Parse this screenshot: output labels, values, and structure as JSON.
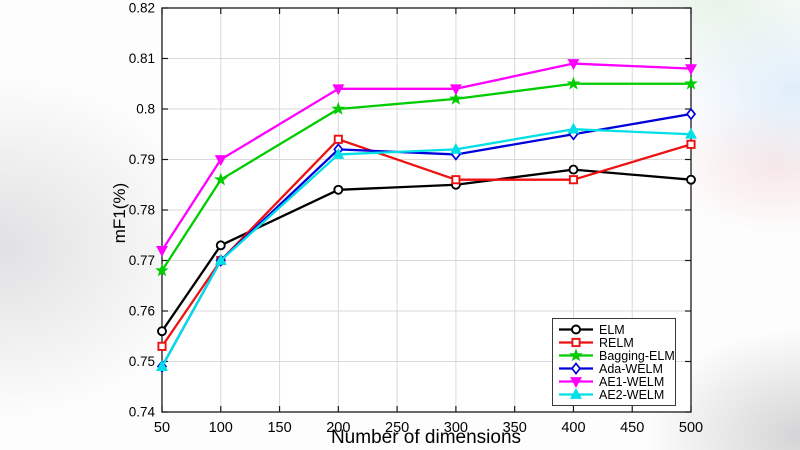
{
  "chart_data": {
    "type": "line",
    "title": "",
    "xlabel": "Number of dimensions",
    "ylabel": "mF1(%)",
    "xlim": [
      50,
      500
    ],
    "ylim": [
      0.74,
      0.82
    ],
    "grid": true,
    "legend_position": "lower-right",
    "x": [
      50,
      100,
      200,
      300,
      400,
      500
    ],
    "xticks": [
      50,
      100,
      150,
      200,
      250,
      300,
      350,
      400,
      450,
      500
    ],
    "xtick_labels": [
      "50",
      "100",
      "150",
      "200",
      "250",
      "300",
      "350",
      "400",
      "450",
      "500"
    ],
    "yticks": [
      0.74,
      0.75,
      0.76,
      0.77,
      0.78,
      0.79,
      0.8,
      0.81,
      0.82
    ],
    "ytick_labels": [
      "0.74",
      "0.75",
      "0.76",
      "0.77",
      "0.78",
      "0.79",
      "0.8",
      "0.81",
      "0.82"
    ],
    "series": [
      {
        "name": "ELM",
        "color": "#000000",
        "marker": "circle",
        "open_marker": true,
        "values": [
          0.756,
          0.773,
          0.784,
          0.785,
          0.788,
          0.786
        ]
      },
      {
        "name": "RELM",
        "color": "#ee1111",
        "marker": "square",
        "open_marker": true,
        "values": [
          0.753,
          0.77,
          0.794,
          0.786,
          0.786,
          0.793
        ]
      },
      {
        "name": "Bagging-ELM",
        "color": "#00cc00",
        "marker": "star",
        "open_marker": false,
        "values": [
          0.768,
          0.786,
          0.8,
          0.802,
          0.805,
          0.805
        ]
      },
      {
        "name": "Ada-WELM",
        "color": "#0000dd",
        "marker": "diamond",
        "open_marker": true,
        "values": [
          0.749,
          0.77,
          0.792,
          0.791,
          0.795,
          0.799
        ]
      },
      {
        "name": "AE1-WELM",
        "color": "#ff00ff",
        "marker": "triangle-down",
        "open_marker": false,
        "values": [
          0.772,
          0.79,
          0.804,
          0.804,
          0.809,
          0.808
        ]
      },
      {
        "name": "AE2-WELM",
        "color": "#00dfe6",
        "marker": "triangle-up",
        "open_marker": false,
        "values": [
          0.749,
          0.77,
          0.791,
          0.792,
          0.796,
          0.795
        ]
      }
    ]
  }
}
